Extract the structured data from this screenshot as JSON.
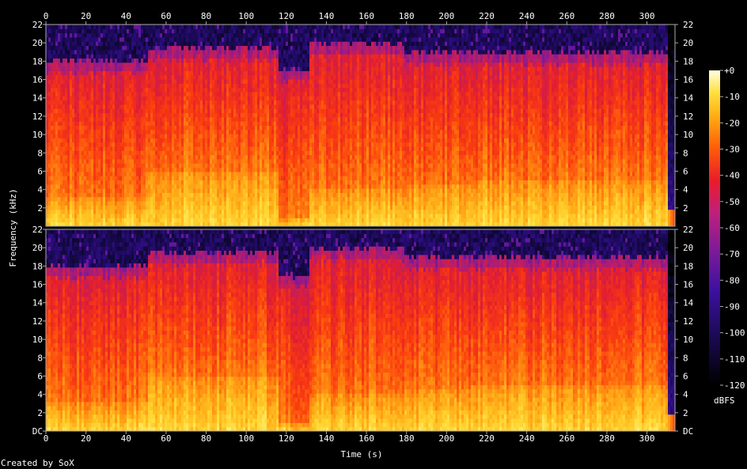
{
  "chart_data": {
    "type": "heatmap",
    "title": "",
    "xlabel": "Time (s)",
    "ylabel": "Frequency (kHz)",
    "xlim": [
      0,
      314
    ],
    "x_ticks": [
      0,
      20,
      40,
      60,
      80,
      100,
      120,
      140,
      160,
      180,
      200,
      220,
      240,
      260,
      280,
      300
    ],
    "y_ticks": [
      "DC",
      "2",
      "4",
      "6",
      "8",
      "10",
      "12",
      "14",
      "16",
      "18",
      "20",
      "22"
    ],
    "y_tick_values": [
      0,
      2,
      4,
      6,
      8,
      10,
      12,
      14,
      16,
      18,
      20,
      22
    ],
    "ylim": [
      0,
      22
    ],
    "channels": 2,
    "colorbar": {
      "label": "dBFS",
      "ticks": [
        "+0",
        "-10",
        "-20",
        "-30",
        "-40",
        "-50",
        "-60",
        "-70",
        "-80",
        "-90",
        "-100",
        "-110",
        "-120"
      ],
      "range": [
        -120,
        0
      ]
    },
    "segments": [
      {
        "start": 0,
        "end": 50,
        "bandwidth_khz": 18,
        "loud_band_khz": 3
      },
      {
        "start": 50,
        "end": 116,
        "bandwidth_khz": 19.5,
        "loud_band_khz": 6
      },
      {
        "start": 116,
        "end": 131,
        "bandwidth_khz": 17,
        "loud_band_khz": 1
      },
      {
        "start": 131,
        "end": 178,
        "bandwidth_khz": 20,
        "loud_band_khz": 4
      },
      {
        "start": 178,
        "end": 212,
        "bandwidth_khz": 19,
        "loud_band_khz": 4.5
      },
      {
        "start": 212,
        "end": 310,
        "bandwidth_khz": 19,
        "loud_band_khz": 5
      }
    ]
  },
  "footer": {
    "credit": "Created by SoX"
  }
}
